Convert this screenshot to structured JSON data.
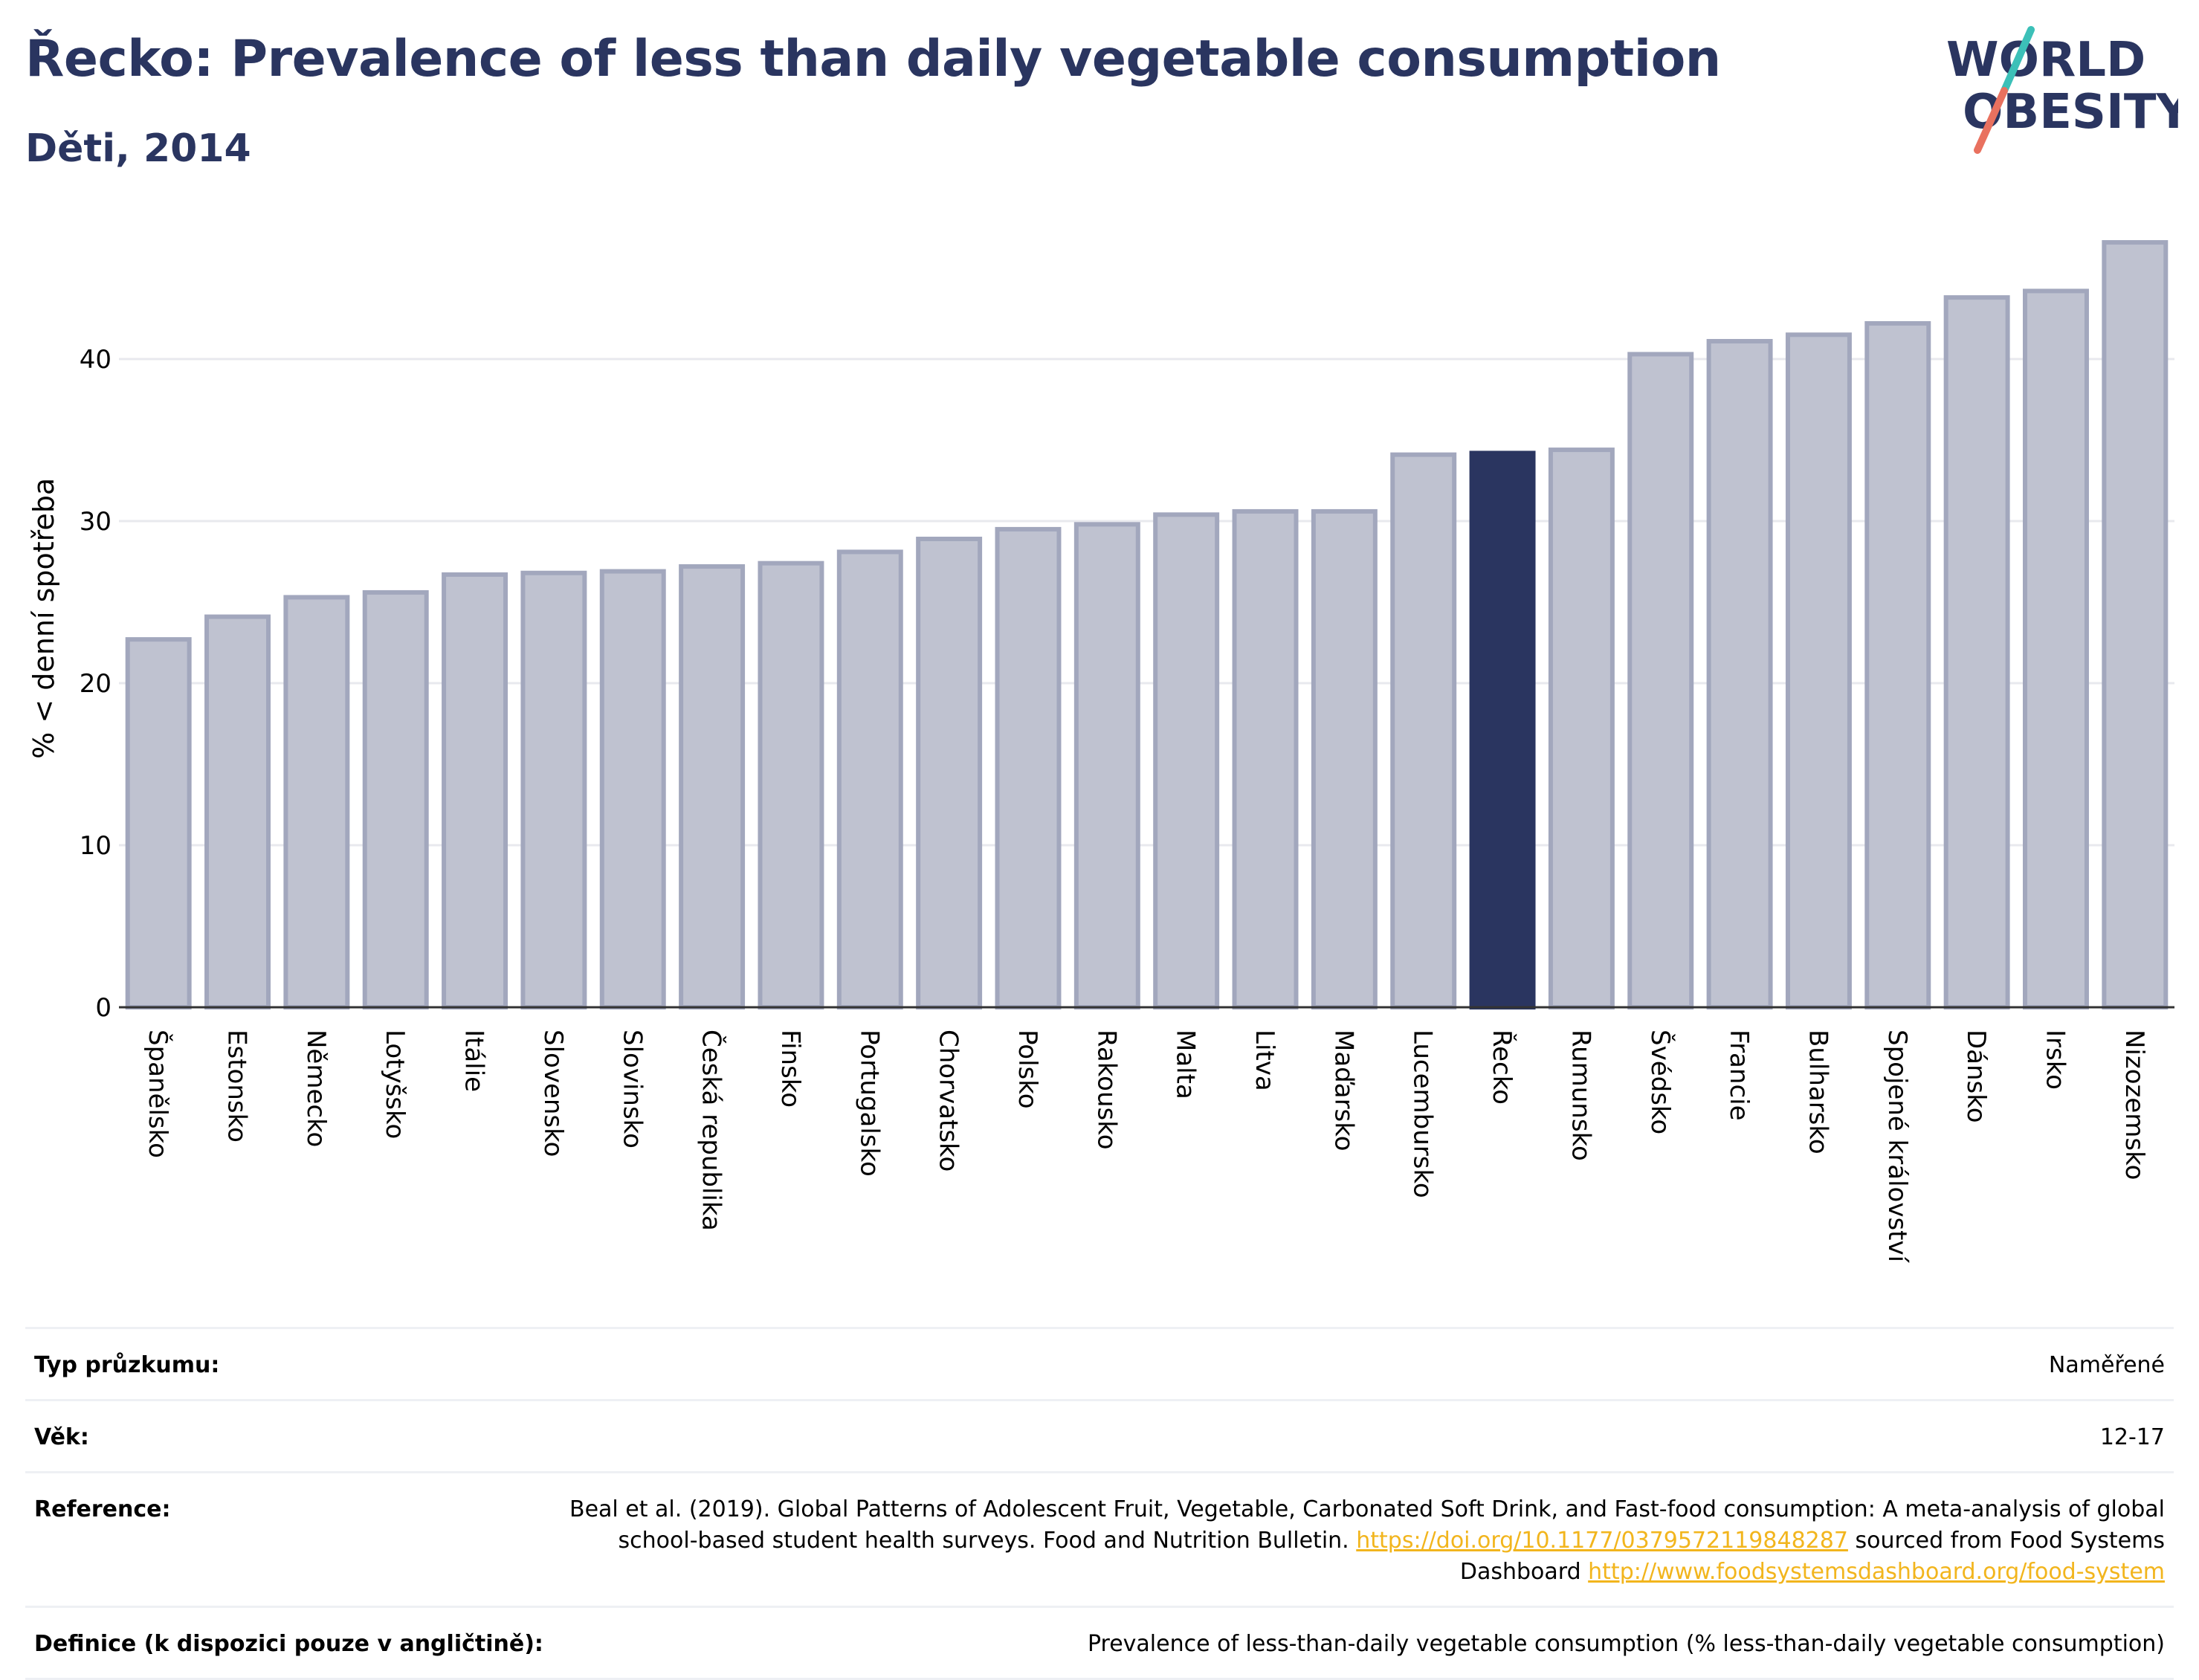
{
  "header": {
    "title": "Řecko: Prevalence of less than daily vegetable consumption",
    "subtitle": "Děti, 2014"
  },
  "logo": {
    "line1": "WORLD",
    "line2": "OBESITY"
  },
  "colors": {
    "bar": "#bfc2d0",
    "bar_stroke": "#a2a7bd",
    "highlight": "#2a3560",
    "text": "#2a3560",
    "grid": "#e8e9ee"
  },
  "chart_data": {
    "type": "bar",
    "ylabel": "% < denní spotřeba",
    "xlabel": "",
    "ylim": [
      0,
      48
    ],
    "yticks": [
      0,
      10,
      20,
      30,
      40
    ],
    "grid": true,
    "highlight": "Řecko",
    "categories": [
      "Španělsko",
      "Estonsko",
      "Německo",
      "Lotyšsko",
      "Itálie",
      "Slovensko",
      "Slovinsko",
      "Česká republika",
      "Finsko",
      "Portugalsko",
      "Chorvatsko",
      "Polsko",
      "Rakousko",
      "Malta",
      "Litva",
      "Maďarsko",
      "Lucembursko",
      "Řecko",
      "Rumunsko",
      "Švédsko",
      "Francie",
      "Bulharsko",
      "Spojené království",
      "Dánsko",
      "Irsko",
      "Nizozemsko"
    ],
    "values": [
      22.7,
      24.1,
      25.3,
      25.6,
      26.7,
      26.8,
      26.9,
      27.2,
      27.4,
      28.1,
      28.9,
      29.5,
      29.8,
      30.4,
      30.6,
      30.6,
      34.1,
      34.2,
      34.4,
      40.3,
      41.1,
      41.5,
      42.2,
      43.8,
      44.2,
      47.2
    ]
  },
  "meta": {
    "survey_type_label": "Typ průzkumu:",
    "survey_type_value": "Naměřené",
    "age_label": "Věk:",
    "age_value": "12-17",
    "reference_label": "Reference:",
    "reference_text_1": "Beal et al. (2019). Global Patterns of Adolescent Fruit, Vegetable, Carbonated Soft Drink, and Fast-food consumption: A meta-analysis of global school-based student health surveys. Food and Nutrition Bulletin. ",
    "reference_link_1": "https://doi.org/10.1177/0379572119848287",
    "reference_text_2": " sourced from Food Systems Dashboard ",
    "reference_link_2": "http://www.foodsystemsdashboard.org/food-system",
    "definition_label": "Definice (k dispozici pouze v angličtině):",
    "definition_value": "Prevalence of less-than-daily vegetable consumption (% less-than-daily vegetable consumption)"
  }
}
